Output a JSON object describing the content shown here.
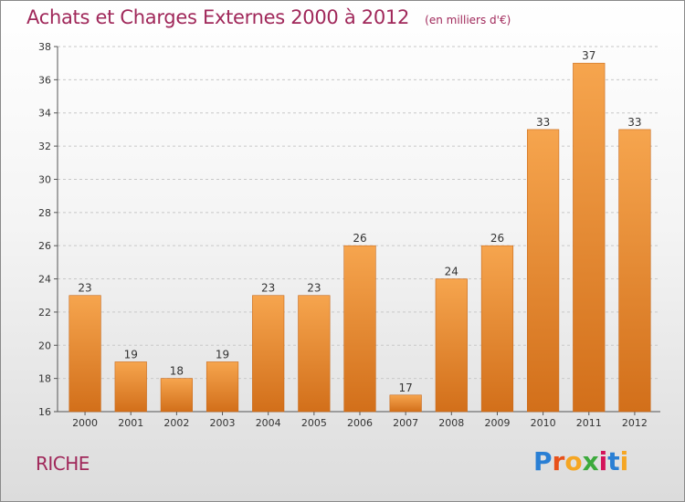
{
  "header": {
    "title": "Achats et Charges Externes 2000 à 2012",
    "unit": "(en milliers d'€)"
  },
  "footer": {
    "commune": "RICHE",
    "brand_letters": [
      "P",
      "r",
      "o",
      "x",
      "i",
      "t",
      "i"
    ],
    "brand_colors": [
      "#2a7fd4",
      "#e8511a",
      "#f5a623",
      "#3caa3c",
      "#d4145a",
      "#2a7fd4",
      "#f5a623"
    ]
  },
  "colors": {
    "title": "#a0285a",
    "bar_top": "#f6a54e",
    "bar_bottom": "#d26f1a",
    "grid": "#c8c8c8",
    "axis": "#555555"
  },
  "chart_data": {
    "type": "bar",
    "title": "Achats et Charges Externes 2000 à 2012",
    "subtitle": "(en milliers d'€)",
    "categories": [
      "2000",
      "2001",
      "2002",
      "2003",
      "2004",
      "2005",
      "2006",
      "2007",
      "2008",
      "2009",
      "2010",
      "2011",
      "2012"
    ],
    "values": [
      23,
      19,
      18,
      19,
      23,
      23,
      26,
      17,
      24,
      26,
      33,
      37,
      33
    ],
    "ylim": [
      16,
      38
    ],
    "yticks": [
      16,
      18,
      20,
      22,
      24,
      26,
      28,
      30,
      32,
      34,
      36,
      38
    ],
    "grid": true,
    "data_labels": true
  }
}
